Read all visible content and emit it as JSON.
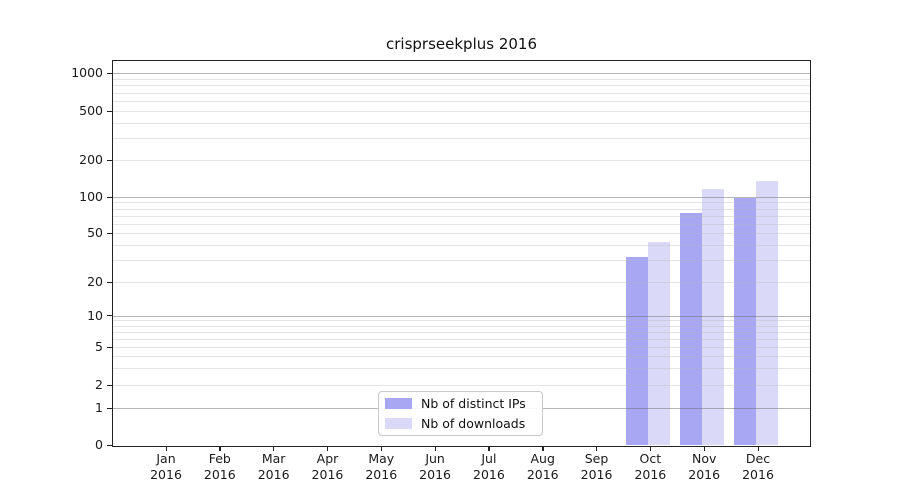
{
  "chart_data": {
    "type": "bar",
    "title": "crisprseekplus 2016",
    "categories": [
      {
        "month": "Jan",
        "year": "2016"
      },
      {
        "month": "Feb",
        "year": "2016"
      },
      {
        "month": "Mar",
        "year": "2016"
      },
      {
        "month": "Apr",
        "year": "2016"
      },
      {
        "month": "May",
        "year": "2016"
      },
      {
        "month": "Jun",
        "year": "2016"
      },
      {
        "month": "Jul",
        "year": "2016"
      },
      {
        "month": "Aug",
        "year": "2016"
      },
      {
        "month": "Sep",
        "year": "2016"
      },
      {
        "month": "Oct",
        "year": "2016"
      },
      {
        "month": "Nov",
        "year": "2016"
      },
      {
        "month": "Dec",
        "year": "2016"
      }
    ],
    "series": [
      {
        "name": "Nb of distinct IPs",
        "color": "#a7a7f4",
        "values": [
          0,
          0,
          0,
          0,
          0,
          0,
          0,
          0,
          0,
          32,
          73,
          98
        ]
      },
      {
        "name": "Nb of downloads",
        "color": "#dadaf8",
        "values": [
          0,
          0,
          0,
          0,
          0,
          0,
          0,
          0,
          0,
          42,
          116,
          135
        ]
      }
    ],
    "y_ticks": [
      0,
      1,
      2,
      5,
      10,
      20,
      50,
      100,
      200,
      500,
      1000
    ],
    "y_tick_labels": [
      "0",
      "1",
      "2",
      "5",
      "10",
      "20",
      "50",
      "100",
      "200",
      "500",
      "1000"
    ],
    "y_scale": "log-like, zero pinned to baseline",
    "grid": true,
    "legend_position": "lower center inside plot"
  }
}
